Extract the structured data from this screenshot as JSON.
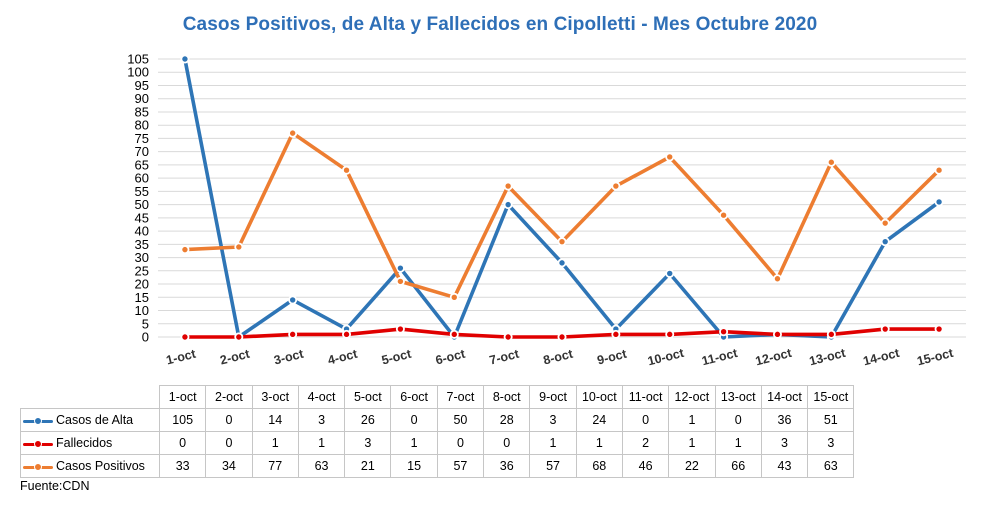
{
  "chart_data": {
    "type": "line",
    "title": "Casos Positivos, de Alta y Fallecidos en Cipolletti - Mes Octubre 2020",
    "categories": [
      "1-oct",
      "2-oct",
      "3-oct",
      "4-oct",
      "5-oct",
      "6-oct",
      "7-oct",
      "8-oct",
      "9-oct",
      "10-oct",
      "11-oct",
      "12-oct",
      "13-oct",
      "14-oct",
      "15-oct"
    ],
    "series": [
      {
        "name": "Casos de Alta",
        "color": "#2e75b6",
        "values": [
          105,
          0,
          14,
          3,
          26,
          0,
          50,
          28,
          3,
          24,
          0,
          1,
          0,
          36,
          51
        ]
      },
      {
        "name": "Fallecidos",
        "color": "#e00000",
        "values": [
          0,
          0,
          1,
          1,
          3,
          1,
          0,
          0,
          1,
          1,
          2,
          1,
          1,
          3,
          3
        ]
      },
      {
        "name": "Casos Positivos",
        "color": "#ed7d31",
        "values": [
          33,
          34,
          77,
          63,
          21,
          15,
          57,
          36,
          57,
          68,
          46,
          22,
          66,
          43,
          63
        ]
      }
    ],
    "ylim": [
      0,
      105
    ],
    "yticks": [
      0,
      5,
      10,
      15,
      20,
      25,
      30,
      35,
      40,
      45,
      50,
      55,
      60,
      65,
      70,
      75,
      80,
      85,
      90,
      95,
      100,
      105
    ],
    "grid": true,
    "legend": "data-table"
  },
  "source": "Fuente:CDN"
}
